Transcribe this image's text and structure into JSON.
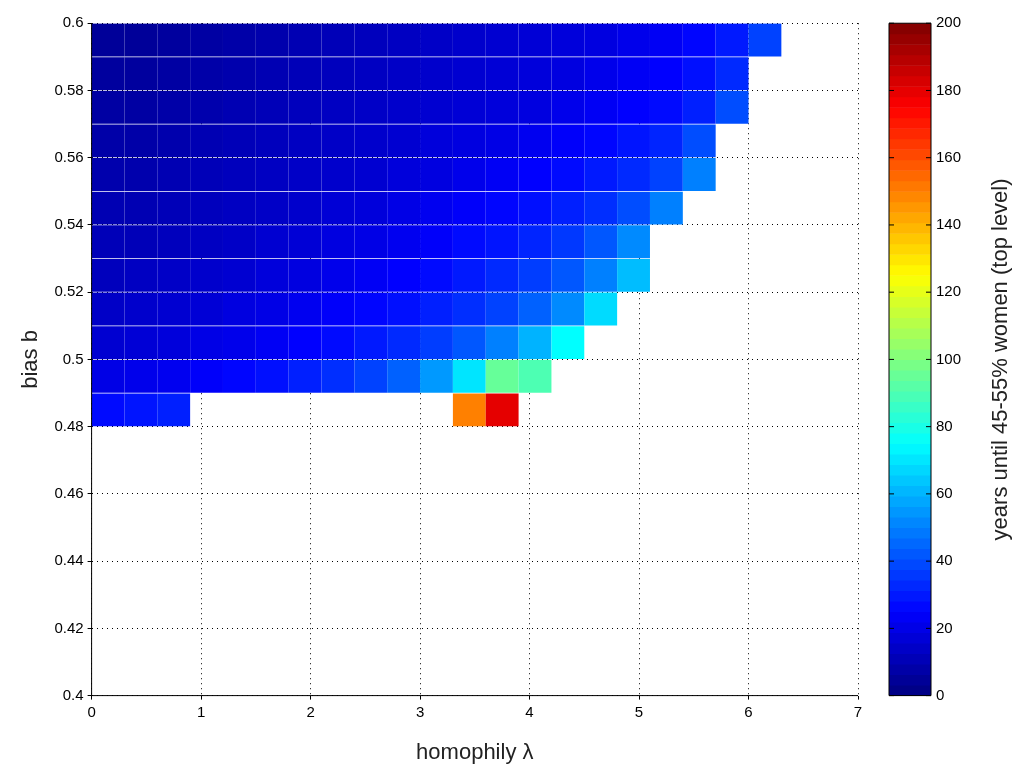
{
  "chart_data": {
    "type": "scatter",
    "xlabel": "homophily λ",
    "ylabel": "bias b",
    "clabel": "years until 45-55% women (top level)",
    "marker": "square",
    "x": [
      0.15,
      0.45,
      0.75,
      1.05,
      1.35,
      1.65,
      1.95,
      2.25,
      2.55,
      2.85,
      3.15,
      3.45,
      3.75,
      4.05,
      4.35,
      4.65,
      4.95,
      5.25,
      5.55,
      5.85,
      6.15,
      0.15,
      0.45,
      0.75,
      1.05,
      1.35,
      1.65,
      1.95,
      2.25,
      2.55,
      2.85,
      3.15,
      3.45,
      3.75,
      4.05,
      4.35,
      4.65,
      4.95,
      5.25,
      5.55,
      5.85,
      0.15,
      0.45,
      0.75,
      1.05,
      1.35,
      1.65,
      1.95,
      2.25,
      2.55,
      2.85,
      3.15,
      3.45,
      3.75,
      4.05,
      4.35,
      4.65,
      4.95,
      5.25,
      5.55,
      5.85,
      0.15,
      0.45,
      0.75,
      1.05,
      1.35,
      1.65,
      1.95,
      2.25,
      2.55,
      2.85,
      3.15,
      3.45,
      3.75,
      4.05,
      4.35,
      4.65,
      4.95,
      5.25,
      5.55,
      0.15,
      0.45,
      0.75,
      1.05,
      1.35,
      1.65,
      1.95,
      2.25,
      2.55,
      2.85,
      3.15,
      3.45,
      3.75,
      4.05,
      4.35,
      4.65,
      4.95,
      5.25,
      5.55,
      0.15,
      0.45,
      0.75,
      1.05,
      1.35,
      1.65,
      1.95,
      2.25,
      2.55,
      2.85,
      3.15,
      3.45,
      3.75,
      4.05,
      4.35,
      4.65,
      4.95,
      5.25,
      0.15,
      0.45,
      0.75,
      1.05,
      1.35,
      1.65,
      1.95,
      2.25,
      2.55,
      2.85,
      3.15,
      3.45,
      3.75,
      4.05,
      4.35,
      4.65,
      4.95,
      0.15,
      0.45,
      0.75,
      1.05,
      1.35,
      1.65,
      1.95,
      2.25,
      2.55,
      2.85,
      3.15,
      3.45,
      3.75,
      4.05,
      4.35,
      4.65,
      4.95,
      0.15,
      0.45,
      0.75,
      1.05,
      1.35,
      1.65,
      1.95,
      2.25,
      2.55,
      2.85,
      3.15,
      3.45,
      3.75,
      4.05,
      4.35,
      4.65,
      0.15,
      0.45,
      0.75,
      1.05,
      1.35,
      1.65,
      1.95,
      2.25,
      2.55,
      2.85,
      3.15,
      3.45,
      3.75,
      4.05,
      4.35,
      0.15,
      0.45,
      0.75,
      1.05,
      1.35,
      1.65,
      1.95,
      2.25,
      2.55,
      2.85,
      3.15,
      3.45,
      3.75,
      4.05,
      0.15,
      0.45,
      0.75,
      3.45,
      3.75
    ],
    "values": [
      0.595,
      0.595,
      0.595,
      0.595,
      0.595,
      0.595,
      0.595,
      0.595,
      0.595,
      0.595,
      0.595,
      0.595,
      0.595,
      0.595,
      0.595,
      0.595,
      0.595,
      0.595,
      0.595,
      0.595,
      0.595,
      0.585,
      0.585,
      0.585,
      0.585,
      0.585,
      0.585,
      0.585,
      0.585,
      0.585,
      0.585,
      0.585,
      0.585,
      0.585,
      0.585,
      0.585,
      0.585,
      0.585,
      0.585,
      0.585,
      0.585,
      0.575,
      0.575,
      0.575,
      0.575,
      0.575,
      0.575,
      0.575,
      0.575,
      0.575,
      0.575,
      0.575,
      0.575,
      0.575,
      0.575,
      0.575,
      0.575,
      0.575,
      0.575,
      0.575,
      0.575,
      0.565,
      0.565,
      0.565,
      0.565,
      0.565,
      0.565,
      0.565,
      0.565,
      0.565,
      0.565,
      0.565,
      0.565,
      0.565,
      0.565,
      0.565,
      0.565,
      0.565,
      0.565,
      0.565,
      0.555,
      0.555,
      0.555,
      0.555,
      0.555,
      0.555,
      0.555,
      0.555,
      0.555,
      0.555,
      0.555,
      0.555,
      0.555,
      0.555,
      0.555,
      0.555,
      0.555,
      0.555,
      0.555,
      0.545,
      0.545,
      0.545,
      0.545,
      0.545,
      0.545,
      0.545,
      0.545,
      0.545,
      0.545,
      0.545,
      0.545,
      0.545,
      0.545,
      0.545,
      0.545,
      0.545,
      0.545,
      0.535,
      0.535,
      0.535,
      0.535,
      0.535,
      0.535,
      0.535,
      0.535,
      0.535,
      0.535,
      0.535,
      0.535,
      0.535,
      0.535,
      0.535,
      0.535,
      0.535,
      0.525,
      0.525,
      0.525,
      0.525,
      0.525,
      0.525,
      0.525,
      0.525,
      0.525,
      0.525,
      0.525,
      0.525,
      0.525,
      0.525,
      0.525,
      0.525,
      0.525,
      0.515,
      0.515,
      0.515,
      0.515,
      0.515,
      0.515,
      0.515,
      0.515,
      0.515,
      0.515,
      0.515,
      0.515,
      0.515,
      0.515,
      0.515,
      0.515,
      0.505,
      0.505,
      0.505,
      0.505,
      0.505,
      0.505,
      0.505,
      0.505,
      0.505,
      0.505,
      0.505,
      0.505,
      0.505,
      0.505,
      0.505,
      0.495,
      0.495,
      0.495,
      0.495,
      0.495,
      0.495,
      0.495,
      0.495,
      0.495,
      0.495,
      0.495,
      0.495,
      0.495,
      0.495,
      0.485,
      0.485,
      0.485,
      0.485,
      0.485
    ],
    "cvalues": [
      5,
      5,
      6,
      7,
      8,
      9,
      10,
      11,
      12,
      13,
      14,
      15,
      16,
      17,
      18,
      19,
      21,
      23,
      26,
      30,
      38,
      6,
      6,
      7,
      8,
      9,
      10,
      11,
      12,
      13,
      14,
      15,
      16,
      17,
      18,
      19,
      21,
      23,
      25,
      28,
      33,
      7,
      7,
      8,
      9,
      10,
      11,
      12,
      13,
      14,
      15,
      16,
      17,
      18,
      19,
      21,
      23,
      25,
      27,
      31,
      40,
      8,
      8,
      9,
      10,
      11,
      12,
      13,
      14,
      15,
      16,
      18,
      19,
      20,
      22,
      24,
      26,
      29,
      32,
      40,
      9,
      9,
      10,
      11,
      12,
      13,
      14,
      15,
      16,
      18,
      19,
      21,
      23,
      25,
      27,
      30,
      33,
      38,
      50,
      10,
      10,
      11,
      12,
      13,
      14,
      15,
      17,
      18,
      20,
      22,
      24,
      26,
      28,
      31,
      34,
      40,
      50,
      11,
      11,
      12,
      13,
      14,
      16,
      17,
      19,
      20,
      22,
      24,
      27,
      29,
      32,
      36,
      42,
      52,
      12,
      13,
      14,
      15,
      16,
      18,
      19,
      21,
      23,
      25,
      27,
      30,
      33,
      37,
      42,
      50,
      62,
      14,
      15,
      16,
      17,
      19,
      20,
      22,
      24,
      26,
      28,
      31,
      34,
      38,
      44,
      52,
      68,
      16,
      17,
      18,
      20,
      21,
      23,
      25,
      27,
      30,
      33,
      37,
      42,
      50,
      60,
      75,
      20,
      21,
      22,
      24,
      26,
      28,
      31,
      34,
      38,
      44,
      55,
      70,
      95,
      90,
      27,
      29,
      31,
      150,
      180
    ],
    "xlim": [
      0,
      7
    ],
    "xticks": [
      0,
      1,
      2,
      3,
      4,
      5,
      6,
      7
    ],
    "ylim": [
      0.4,
      0.6
    ],
    "yticks": [
      0.4,
      0.42,
      0.44,
      0.46,
      0.48,
      0.5,
      0.52,
      0.54,
      0.56,
      0.58,
      0.6
    ],
    "clim": [
      0,
      200
    ],
    "cticks": [
      0,
      20,
      40,
      60,
      80,
      100,
      120,
      140,
      160,
      180,
      200
    ],
    "grid": true
  }
}
